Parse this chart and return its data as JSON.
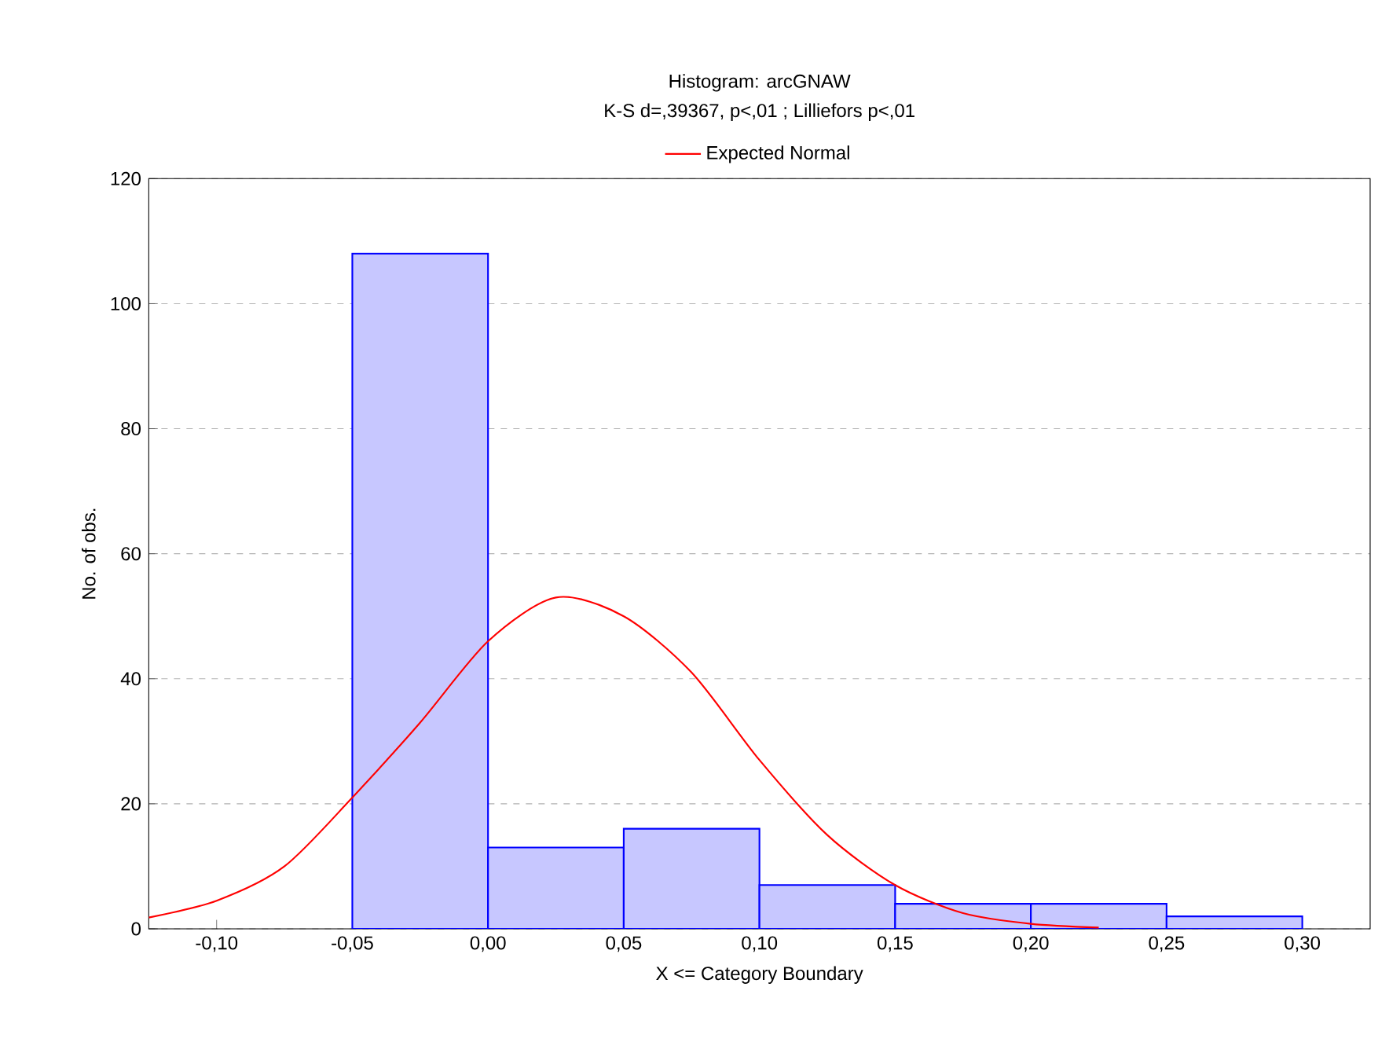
{
  "chart_data": {
    "type": "histogram",
    "title": "Histogram: arcGNAW",
    "subtitle": "K-S d=,39367, p<,01 ; Lilliefors p<,01",
    "xlabel": "X <= Category Boundary",
    "ylabel": "No. of obs.",
    "series": [
      {
        "bins": [
          -0.05,
          0.0,
          0.05,
          0.1,
          0.15,
          0.2,
          0.25,
          0.3
        ],
        "values": [
          108,
          13,
          16,
          7,
          4,
          4,
          2
        ],
        "color": "#0000ff"
      },
      {
        "type": "line",
        "name": "Expected Normal",
        "color": "#ff0000",
        "x": [
          -0.125,
          -0.1,
          -0.075,
          -0.05,
          -0.025,
          0.0,
          0.025,
          0.05,
          0.075,
          0.1,
          0.125,
          0.15,
          0.175,
          0.2,
          0.225
        ],
        "values": [
          1.8,
          4.5,
          10,
          21,
          33,
          46,
          53,
          50,
          41,
          27,
          15,
          7,
          2.5,
          0.8,
          0.2
        ]
      }
    ],
    "xlim": [
      -0.125,
      0.325
    ],
    "ylim": [
      0,
      120
    ],
    "xticks": [
      {
        "value": -0.1,
        "label": "-0,10"
      },
      {
        "value": -0.05,
        "label": "-0,05"
      },
      {
        "value": 0.0,
        "label": "0,00"
      },
      {
        "value": 0.05,
        "label": "0,05"
      },
      {
        "value": 0.1,
        "label": "0,10"
      },
      {
        "value": 0.15,
        "label": "0,15"
      },
      {
        "value": 0.2,
        "label": "0,20"
      },
      {
        "value": 0.25,
        "label": "0,25"
      },
      {
        "value": 0.3,
        "label": "0,30"
      }
    ],
    "yticks": [
      0,
      20,
      40,
      60,
      80,
      100,
      120
    ],
    "grid": "y",
    "legend": "top",
    "marker": "none",
    "line_style": "solid"
  }
}
